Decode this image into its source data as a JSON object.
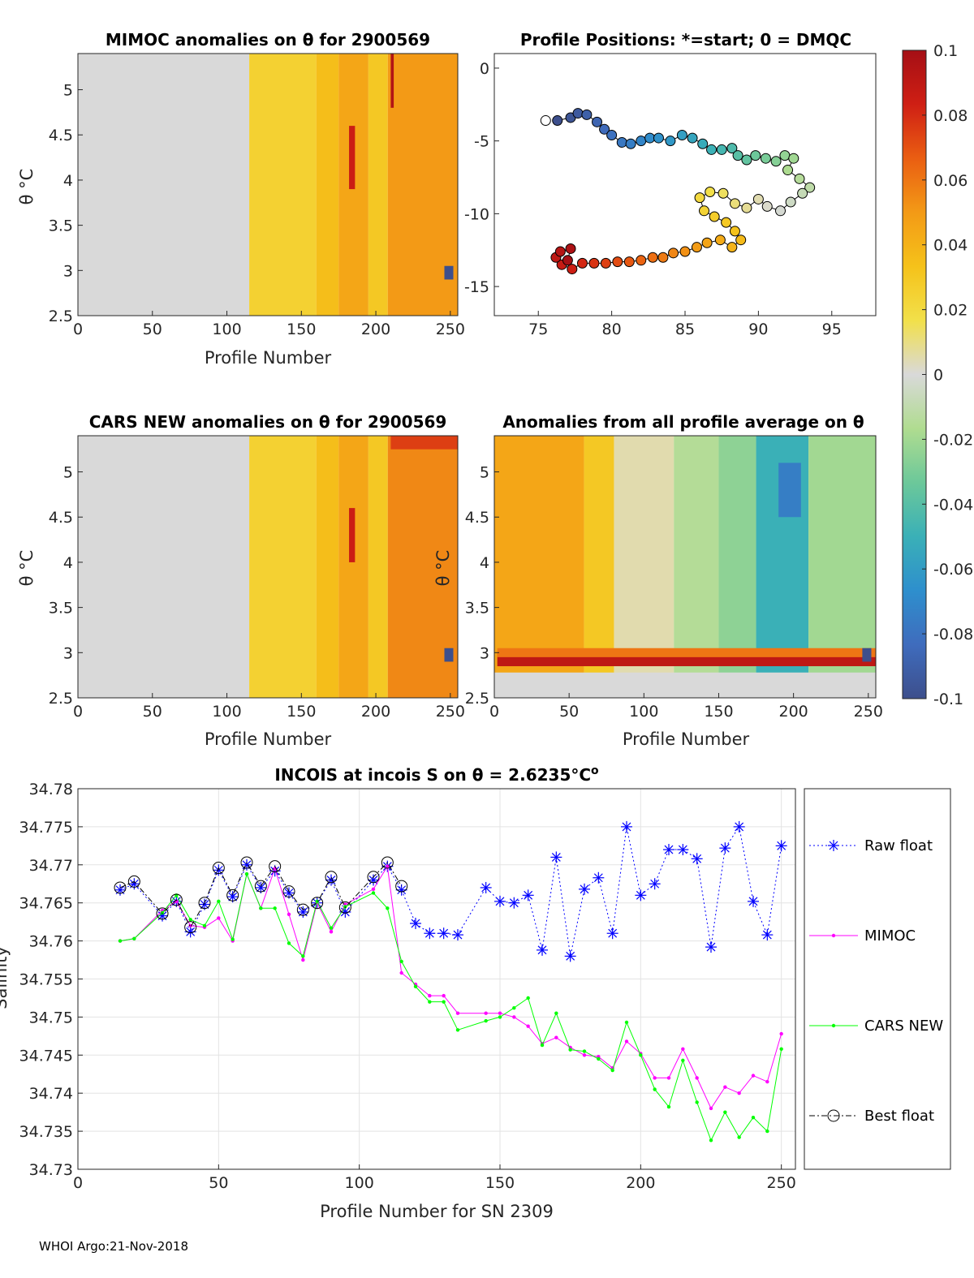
{
  "footer": "WHOI Argo:21-Nov-2018",
  "chart_data": [
    {
      "id": "mimoc",
      "type": "heatmap",
      "title": "MIMOC anomalies on θ  for 2900569",
      "xlabel": "Profile Number",
      "ylabel": "θ °C",
      "xlim": [
        0,
        255
      ],
      "ylim": [
        2.5,
        5.4
      ],
      "xticks": [
        0,
        50,
        100,
        150,
        200,
        250
      ],
      "yticks": [
        2.5,
        3,
        3.5,
        4,
        4.5,
        5
      ],
      "columns": [
        {
          "x0": 0,
          "x1": 115,
          "anomaly": 0.0
        },
        {
          "x0": 115,
          "x1": 160,
          "anomaly": 0.025
        },
        {
          "x0": 160,
          "x1": 175,
          "anomaly": 0.035
        },
        {
          "x0": 175,
          "x1": 195,
          "anomaly": 0.045
        },
        {
          "x0": 195,
          "x1": 208,
          "anomaly": 0.03
        },
        {
          "x0": 208,
          "x1": 255,
          "anomaly": 0.05
        }
      ],
      "cells": [
        {
          "x0": 182,
          "x1": 186,
          "y0": 3.9,
          "y1": 4.6,
          "anomaly": 0.085
        },
        {
          "x0": 210,
          "x1": 212,
          "y0": 4.8,
          "y1": 5.4,
          "anomaly": 0.095
        },
        {
          "x0": 246,
          "x1": 252,
          "y0": 2.9,
          "y1": 3.05,
          "anomaly": -0.1
        }
      ]
    },
    {
      "id": "positions",
      "type": "scatter",
      "title": "Profile Positions: *=start; 0 = DMQC",
      "xlabel": "",
      "ylabel": "",
      "xlim": [
        72,
        98
      ],
      "ylim": [
        -17,
        1
      ],
      "xticks": [
        75,
        80,
        85,
        90,
        95
      ],
      "yticks": [
        0,
        -5,
        -10,
        -15
      ],
      "start": {
        "x": 75.5,
        "y": -3.6
      },
      "points": [
        {
          "x": 76.3,
          "y": -3.6
        },
        {
          "x": 77.2,
          "y": -3.4
        },
        {
          "x": 77.7,
          "y": -3.1
        },
        {
          "x": 78.3,
          "y": -3.2
        },
        {
          "x": 79.0,
          "y": -3.7
        },
        {
          "x": 79.5,
          "y": -4.2
        },
        {
          "x": 80.0,
          "y": -4.6
        },
        {
          "x": 80.7,
          "y": -5.1
        },
        {
          "x": 81.3,
          "y": -5.2
        },
        {
          "x": 82.0,
          "y": -5.0
        },
        {
          "x": 82.6,
          "y": -4.8
        },
        {
          "x": 83.2,
          "y": -4.8
        },
        {
          "x": 84.0,
          "y": -5.0
        },
        {
          "x": 84.8,
          "y": -4.6
        },
        {
          "x": 85.5,
          "y": -4.8
        },
        {
          "x": 86.2,
          "y": -5.2
        },
        {
          "x": 86.8,
          "y": -5.6
        },
        {
          "x": 87.5,
          "y": -5.6
        },
        {
          "x": 88.2,
          "y": -5.5
        },
        {
          "x": 88.6,
          "y": -6.0
        },
        {
          "x": 89.2,
          "y": -6.3
        },
        {
          "x": 89.8,
          "y": -6.0
        },
        {
          "x": 90.5,
          "y": -6.2
        },
        {
          "x": 91.2,
          "y": -6.4
        },
        {
          "x": 91.8,
          "y": -6.0
        },
        {
          "x": 92.4,
          "y": -6.2
        },
        {
          "x": 92.0,
          "y": -7.0
        },
        {
          "x": 92.8,
          "y": -7.6
        },
        {
          "x": 93.5,
          "y": -8.2
        },
        {
          "x": 93.0,
          "y": -8.6
        },
        {
          "x": 92.2,
          "y": -9.2
        },
        {
          "x": 91.5,
          "y": -9.8
        },
        {
          "x": 90.6,
          "y": -9.5
        },
        {
          "x": 90.0,
          "y": -9.0
        },
        {
          "x": 89.2,
          "y": -9.6
        },
        {
          "x": 88.4,
          "y": -9.3
        },
        {
          "x": 87.6,
          "y": -8.6
        },
        {
          "x": 86.7,
          "y": -8.5
        },
        {
          "x": 86.0,
          "y": -8.9
        },
        {
          "x": 86.3,
          "y": -9.8
        },
        {
          "x": 87.0,
          "y": -10.2
        },
        {
          "x": 87.8,
          "y": -10.6
        },
        {
          "x": 88.4,
          "y": -11.2
        },
        {
          "x": 88.8,
          "y": -11.8
        },
        {
          "x": 88.2,
          "y": -12.3
        },
        {
          "x": 87.4,
          "y": -11.8
        },
        {
          "x": 86.5,
          "y": -12.0
        },
        {
          "x": 85.8,
          "y": -12.3
        },
        {
          "x": 85.0,
          "y": -12.6
        },
        {
          "x": 84.2,
          "y": -12.7
        },
        {
          "x": 83.5,
          "y": -13.0
        },
        {
          "x": 82.8,
          "y": -13.0
        },
        {
          "x": 82.0,
          "y": -13.2
        },
        {
          "x": 81.2,
          "y": -13.3
        },
        {
          "x": 80.4,
          "y": -13.3
        },
        {
          "x": 79.6,
          "y": -13.4
        },
        {
          "x": 78.8,
          "y": -13.4
        },
        {
          "x": 78.0,
          "y": -13.4
        },
        {
          "x": 77.3,
          "y": -13.8
        },
        {
          "x": 76.6,
          "y": -13.5
        },
        {
          "x": 76.2,
          "y": -13.0
        },
        {
          "x": 76.5,
          "y": -12.6
        },
        {
          "x": 77.2,
          "y": -12.4
        },
        {
          "x": 77.0,
          "y": -13.2
        }
      ]
    },
    {
      "id": "cars",
      "type": "heatmap",
      "title": "CARS NEW anomalies on θ for 2900569",
      "xlabel": "Profile Number",
      "ylabel": "θ °C",
      "xlim": [
        0,
        255
      ],
      "ylim": [
        2.5,
        5.4
      ],
      "xticks": [
        0,
        50,
        100,
        150,
        200,
        250
      ],
      "yticks": [
        2.5,
        3,
        3.5,
        4,
        4.5,
        5
      ],
      "columns": [
        {
          "x0": 0,
          "x1": 115,
          "anomaly": 0.0
        },
        {
          "x0": 115,
          "x1": 160,
          "anomaly": 0.025
        },
        {
          "x0": 160,
          "x1": 175,
          "anomaly": 0.035
        },
        {
          "x0": 175,
          "x1": 195,
          "anomaly": 0.045
        },
        {
          "x0": 195,
          "x1": 208,
          "anomaly": 0.03
        },
        {
          "x0": 208,
          "x1": 255,
          "anomaly": 0.055
        }
      ],
      "cells": [
        {
          "x0": 182,
          "x1": 186,
          "y0": 4.0,
          "y1": 4.6,
          "anomaly": 0.085
        },
        {
          "x0": 210,
          "x1": 255,
          "y0": 5.25,
          "y1": 5.4,
          "anomaly": 0.075
        },
        {
          "x0": 246,
          "x1": 252,
          "y0": 2.9,
          "y1": 3.05,
          "anomaly": -0.1
        }
      ]
    },
    {
      "id": "allavg",
      "type": "heatmap",
      "title": "Anomalies from all profile average on θ",
      "xlabel": "Profile Number",
      "ylabel": "θ °C",
      "xlim": [
        0,
        255
      ],
      "ylim": [
        2.5,
        5.4
      ],
      "xticks": [
        0,
        50,
        100,
        150,
        200,
        250
      ],
      "yticks": [
        2.5,
        3,
        3.5,
        4,
        4.5,
        5
      ],
      "columns": [
        {
          "x0": 0,
          "x1": 60,
          "anomaly": 0.045
        },
        {
          "x0": 60,
          "x1": 80,
          "anomaly": 0.03
        },
        {
          "x0": 80,
          "x1": 120,
          "anomaly": 0.005
        },
        {
          "x0": 120,
          "x1": 150,
          "anomaly": -0.015
        },
        {
          "x0": 150,
          "x1": 175,
          "anomaly": -0.025
        },
        {
          "x0": 175,
          "x1": 210,
          "anomaly": -0.05
        },
        {
          "x0": 210,
          "x1": 255,
          "anomaly": -0.02
        }
      ],
      "cells": [
        {
          "x0": 2,
          "x1": 255,
          "y0": 2.85,
          "y1": 3.0,
          "anomaly": 0.09
        },
        {
          "x0": 2,
          "x1": 255,
          "y0": 2.95,
          "y1": 3.05,
          "anomaly": 0.06
        },
        {
          "x0": 246,
          "x1": 252,
          "y0": 2.9,
          "y1": 3.05,
          "anomaly": -0.1
        },
        {
          "x0": 0,
          "x1": 255,
          "y0": 2.5,
          "y1": 2.78,
          "anomaly": 0.0
        },
        {
          "x0": 190,
          "x1": 205,
          "y0": 4.5,
          "y1": 5.1,
          "anomaly": -0.075
        }
      ]
    },
    {
      "id": "salinity",
      "type": "line",
      "title": "INCOIS at incois S on θ = 2.6235°C",
      "title_sup": "o",
      "xlabel": "Profile Number for SN 2309",
      "ylabel": "Salinity",
      "xlim": [
        0,
        255
      ],
      "ylim": [
        34.73,
        34.78
      ],
      "xticks": [
        0,
        50,
        100,
        150,
        200,
        250
      ],
      "yticks": [
        34.73,
        34.735,
        34.74,
        34.745,
        34.75,
        34.755,
        34.76,
        34.765,
        34.77,
        34.775,
        34.78
      ],
      "series": [
        {
          "name": "Raw float",
          "color": "#0000ff",
          "style": "dotted",
          "marker": "star",
          "x": [
            15,
            20,
            30,
            35,
            40,
            45,
            50,
            55,
            60,
            65,
            70,
            75,
            80,
            85,
            90,
            95,
            105,
            110,
            115,
            120,
            125,
            130,
            135,
            145,
            150,
            155,
            160,
            165,
            170,
            175,
            180,
            185,
            190,
            195,
            200,
            205,
            210,
            215,
            220,
            225,
            230,
            235,
            240,
            245,
            250
          ],
          "y": [
            34.7667,
            34.7675,
            34.7633,
            34.7652,
            34.7612,
            34.7648,
            34.7693,
            34.7658,
            34.77,
            34.767,
            34.7692,
            34.7663,
            34.7638,
            34.765,
            34.768,
            34.7638,
            34.768,
            34.7698,
            34.7667,
            34.7623,
            34.761,
            34.761,
            34.7608,
            34.767,
            34.7652,
            34.765,
            34.766,
            34.7588,
            34.771,
            34.758,
            34.7668,
            34.7683,
            34.761,
            34.775,
            34.766,
            34.7675,
            34.772,
            34.772,
            34.7708,
            34.7592,
            34.7722,
            34.775,
            34.7652,
            34.7608,
            34.7725
          ]
        },
        {
          "name": "MIMOC",
          "color": "#ff00ff",
          "style": "solid",
          "marker": "dot",
          "x": [
            15,
            20,
            30,
            35,
            40,
            45,
            50,
            55,
            60,
            65,
            70,
            75,
            80,
            85,
            90,
            95,
            105,
            110,
            115,
            120,
            125,
            130,
            135,
            145,
            150,
            155,
            160,
            165,
            170,
            175,
            180,
            185,
            190,
            195,
            200,
            205,
            210,
            215,
            220,
            225,
            230,
            235,
            240,
            245,
            250
          ],
          "y": [
            34.76,
            34.7603,
            34.764,
            34.7652,
            34.762,
            34.7618,
            34.763,
            34.76,
            34.7688,
            34.7643,
            34.7695,
            34.7635,
            34.7575,
            34.765,
            34.7612,
            34.7648,
            34.7668,
            34.7698,
            34.7558,
            34.7543,
            34.7528,
            34.7528,
            34.7505,
            34.7505,
            34.7505,
            34.75,
            34.7488,
            34.7465,
            34.7473,
            34.746,
            34.745,
            34.7448,
            34.7433,
            34.7468,
            34.7452,
            34.742,
            34.742,
            34.7458,
            34.742,
            34.738,
            34.7408,
            34.74,
            34.7423,
            34.7415,
            34.7478
          ]
        },
        {
          "name": "CARS NEW",
          "color": "#00ff00",
          "style": "solid",
          "marker": "dot",
          "x": [
            15,
            20,
            30,
            35,
            40,
            45,
            50,
            55,
            60,
            65,
            70,
            75,
            80,
            85,
            90,
            95,
            105,
            110,
            115,
            120,
            125,
            130,
            135,
            145,
            150,
            155,
            160,
            165,
            170,
            175,
            180,
            185,
            190,
            195,
            200,
            205,
            210,
            215,
            220,
            225,
            230,
            235,
            240,
            245,
            250
          ],
          "y": [
            34.76,
            34.7603,
            34.7637,
            34.766,
            34.7628,
            34.762,
            34.7652,
            34.7602,
            34.7688,
            34.7643,
            34.7643,
            34.7597,
            34.758,
            34.7652,
            34.7617,
            34.7645,
            34.7663,
            34.7643,
            34.7573,
            34.754,
            34.752,
            34.752,
            34.7483,
            34.7495,
            34.75,
            34.7512,
            34.7525,
            34.7463,
            34.7505,
            34.7457,
            34.7455,
            34.7445,
            34.743,
            34.7493,
            34.745,
            34.7405,
            34.7382,
            34.7443,
            34.7388,
            34.7338,
            34.7375,
            34.7342,
            34.7368,
            34.735,
            34.7458
          ]
        },
        {
          "name": "Best float",
          "color": "#000000",
          "style": "dashdot",
          "marker": "circle",
          "x": [
            15,
            20,
            30,
            35,
            40,
            45,
            50,
            55,
            60,
            65,
            70,
            75,
            80,
            85,
            90,
            95,
            105,
            110,
            115
          ],
          "y": [
            34.767,
            34.7678,
            34.7636,
            34.7654,
            34.7618,
            34.765,
            34.7696,
            34.766,
            34.7703,
            34.7672,
            34.7698,
            34.7665,
            34.7641,
            34.765,
            34.7684,
            34.7644,
            34.7684,
            34.7703,
            34.7672
          ]
        }
      ]
    }
  ],
  "colorbar": {
    "min": -0.1,
    "max": 0.1,
    "ticks": [
      0.1,
      0.08,
      0.06,
      0.04,
      0.02,
      0,
      -0.02,
      -0.04,
      -0.06,
      -0.08,
      -0.1
    ],
    "tick_labels": [
      "0.1",
      "0.08",
      "0.06",
      "0.04",
      "0.02",
      "0",
      "-0.02",
      "-0.04",
      "-0.06",
      "-0.08",
      "-0.1"
    ],
    "colors": [
      "#3d4f8c",
      "#3f6cbd",
      "#2e8fcd",
      "#3ab0b7",
      "#6cc89a",
      "#b0dc90",
      "#d9d9d9",
      "#f2e04a",
      "#f5c21a",
      "#f39a16",
      "#ea5e12",
      "#cf1f14",
      "#a50f15"
    ]
  }
}
